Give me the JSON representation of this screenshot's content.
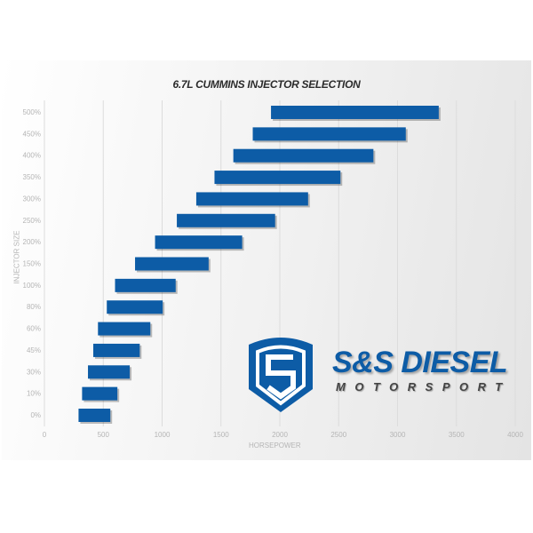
{
  "chart_data": {
    "type": "bar",
    "orientation": "horizontal-range",
    "title": "6.7L CUMMINS INJECTOR SELECTION",
    "xlabel": "HORSEPOWER",
    "ylabel": "INJECTOR SIZE",
    "xlim": [
      0,
      4000
    ],
    "xticks": [
      "0",
      "500",
      "1000",
      "1500",
      "2000",
      "2500",
      "3000",
      "3500",
      "4000"
    ],
    "grid": true,
    "categories": [
      "0%",
      "10%",
      "30%",
      "45%",
      "60%",
      "80%",
      "100%",
      "150%",
      "200%",
      "250%",
      "300%",
      "350%",
      "400%",
      "450%",
      "500%"
    ],
    "ranges": [
      [
        290,
        560
      ],
      [
        320,
        620
      ],
      [
        370,
        725
      ],
      [
        415,
        810
      ],
      [
        455,
        900
      ],
      [
        530,
        1005
      ],
      [
        600,
        1115
      ],
      [
        770,
        1395
      ],
      [
        940,
        1680
      ],
      [
        1125,
        1960
      ],
      [
        1290,
        2240
      ],
      [
        1445,
        2515
      ],
      [
        1605,
        2795
      ],
      [
        1770,
        3070
      ],
      [
        1925,
        3350
      ]
    ],
    "colors": {
      "bar": "#0d5ca6",
      "grid": "#dcdcdc",
      "text": "#b5b5b5"
    }
  },
  "logo": {
    "brand": "S&S DIESEL",
    "sub": "MOTORSPORT"
  }
}
